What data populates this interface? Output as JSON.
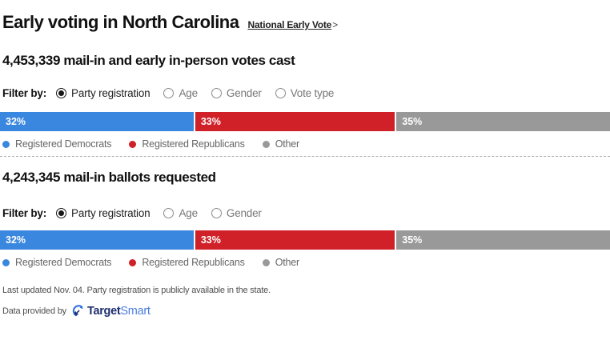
{
  "header": {
    "title": "Early voting in North Carolina",
    "link_label": "National Early Vote",
    "link_arrow": ">"
  },
  "sections": [
    {
      "heading": "4,453,339 mail-in and early in-person votes cast",
      "filter_label": "Filter by:",
      "filters": [
        {
          "label": "Party registration",
          "selected": true
        },
        {
          "label": "Age",
          "selected": false
        },
        {
          "label": "Gender",
          "selected": false
        },
        {
          "label": "Vote type",
          "selected": false
        }
      ]
    },
    {
      "heading": "4,243,345 mail-in ballots requested",
      "filter_label": "Filter by:",
      "filters": [
        {
          "label": "Party registration",
          "selected": true
        },
        {
          "label": "Age",
          "selected": false
        },
        {
          "label": "Gender",
          "selected": false
        }
      ]
    }
  ],
  "chart_data": [
    {
      "type": "bar",
      "title": "4,453,339 mail-in and early in-person votes cast",
      "stacked": true,
      "unit": "percent",
      "xlim": [
        0,
        100
      ],
      "legend_position": "bottom",
      "segments": [
        {
          "name": "Registered Democrats",
          "value": 32,
          "label": "32%",
          "color": "#3a87e0"
        },
        {
          "name": "Registered Republicans",
          "value": 33,
          "label": "33%",
          "color": "#d02128"
        },
        {
          "name": "Other",
          "value": 35,
          "label": "35%",
          "color": "#999999"
        }
      ]
    },
    {
      "type": "bar",
      "title": "4,243,345 mail-in ballots requested",
      "stacked": true,
      "unit": "percent",
      "xlim": [
        0,
        100
      ],
      "legend_position": "bottom",
      "segments": [
        {
          "name": "Registered Democrats",
          "value": 32,
          "label": "32%",
          "color": "#3a87e0"
        },
        {
          "name": "Registered Republicans",
          "value": 33,
          "label": "33%",
          "color": "#d02128"
        },
        {
          "name": "Other",
          "value": 35,
          "label": "35%",
          "color": "#999999"
        }
      ]
    }
  ],
  "footer": {
    "last_updated": "Last updated Nov. 04. Party registration is publicly available in the state.",
    "provided_label": "Data provided by",
    "provider": {
      "part1": "Target",
      "part2": "Smart"
    }
  },
  "colors": {
    "democrat": "#3a87e0",
    "republican": "#d02128",
    "other": "#999999",
    "logo_dark": "#1e2f6f",
    "logo_light": "#4a7de2"
  }
}
